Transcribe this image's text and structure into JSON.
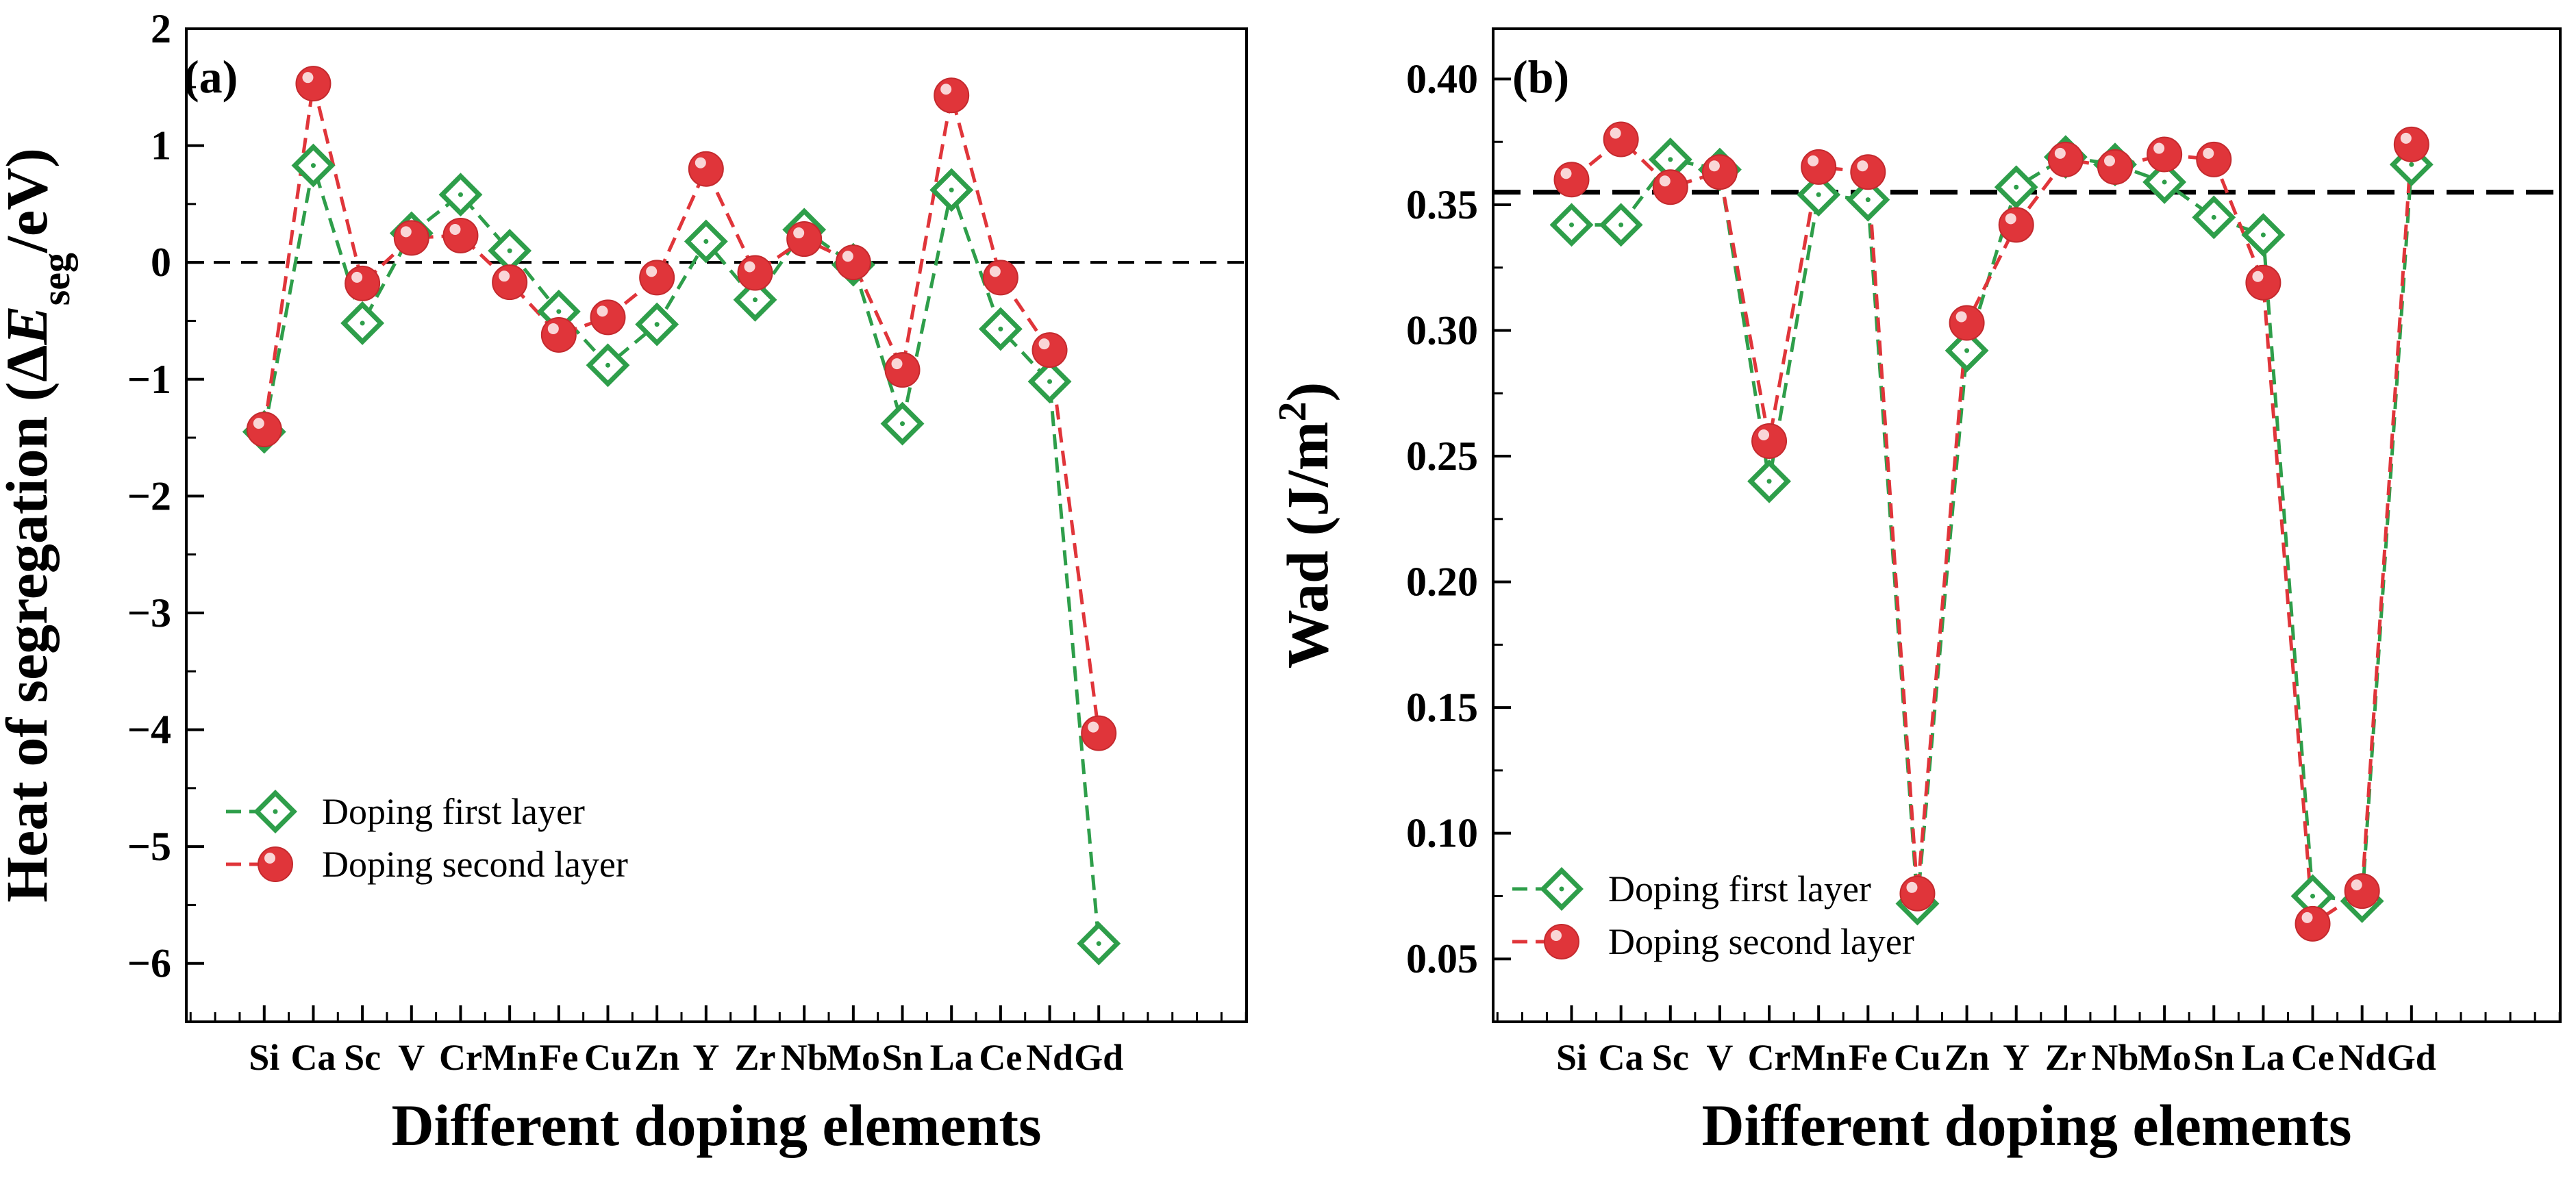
{
  "chart_data": [
    {
      "type": "line",
      "panel_label": "(a)",
      "title": "",
      "xlabel": "Different doping elements",
      "ylabel": {
        "prefix": "Heat of segregation (Δ",
        "var": "E",
        "sub": "seg",
        "suffix": "/eV)"
      },
      "categories": [
        "Si",
        "Ca",
        "Sc",
        "V",
        "Cr",
        "Mn",
        "Fe",
        "Cu",
        "Zn",
        "Y",
        "Zr",
        "Nb",
        "Mo",
        "Sn",
        "La",
        "Ce",
        "Nd",
        "Gd"
      ],
      "ylim": [
        -6.5,
        2
      ],
      "yticks": [
        2,
        1,
        0,
        -1,
        -2,
        -3,
        -4,
        -5,
        -6
      ],
      "ytick_labels": [
        "2",
        "1",
        "0",
        "−1",
        "−2",
        "−3",
        "−4",
        "−5",
        "−6"
      ],
      "reference_line": 0,
      "legend_position": "lower-left",
      "grid": false,
      "series": [
        {
          "name": "Doping first layer",
          "marker": "diamond",
          "color": "#2e9e4a",
          "values": [
            -1.45,
            0.83,
            -0.52,
            0.25,
            0.58,
            0.1,
            -0.42,
            -0.88,
            -0.53,
            0.18,
            -0.32,
            0.28,
            -0.02,
            -1.38,
            0.62,
            -0.57,
            -1.02,
            -5.83
          ]
        },
        {
          "name": "Doping second layer",
          "marker": "circle",
          "color": "#e0353a",
          "values": [
            -1.43,
            1.53,
            -0.18,
            0.21,
            0.23,
            -0.17,
            -0.62,
            -0.47,
            -0.13,
            0.8,
            -0.09,
            0.2,
            0.0,
            -0.92,
            1.43,
            -0.13,
            -0.75,
            -4.03
          ]
        }
      ]
    },
    {
      "type": "line",
      "panel_label": "(b)",
      "title": "",
      "xlabel": "Different doping elements",
      "ylabel": {
        "prefix": "Wad (J/m",
        "sup": "2",
        "suffix": ")"
      },
      "categories": [
        "Si",
        "Ca",
        "Sc",
        "V",
        "Cr",
        "Mn",
        "Fe",
        "Cu",
        "Zn",
        "Y",
        "Zr",
        "Nb",
        "Mo",
        "Sn",
        "La",
        "Ce",
        "Nd",
        "Gd"
      ],
      "ylim": [
        0.025,
        0.42
      ],
      "yticks": [
        0.4,
        0.35,
        0.3,
        0.25,
        0.2,
        0.15,
        0.1,
        0.05
      ],
      "ytick_labels": [
        "0.40",
        "0.35",
        "0.30",
        "0.25",
        "0.20",
        "0.15",
        "0.10",
        "0.05"
      ],
      "reference_line": 0.355,
      "legend_position": "lower-left",
      "grid": false,
      "series": [
        {
          "name": "Doping first layer",
          "marker": "diamond",
          "color": "#2e9e4a",
          "values": [
            0.342,
            0.342,
            0.368,
            0.364,
            0.24,
            0.354,
            0.352,
            0.072,
            0.292,
            0.357,
            0.369,
            0.366,
            0.359,
            0.345,
            0.338,
            0.075,
            0.073,
            0.366
          ]
        },
        {
          "name": "Doping second layer",
          "marker": "circle",
          "color": "#e0353a",
          "values": [
            0.36,
            0.376,
            0.357,
            0.363,
            0.256,
            0.365,
            0.363,
            0.076,
            0.303,
            0.342,
            0.368,
            0.365,
            0.37,
            0.368,
            0.319,
            0.064,
            0.077,
            0.374
          ]
        }
      ]
    }
  ]
}
